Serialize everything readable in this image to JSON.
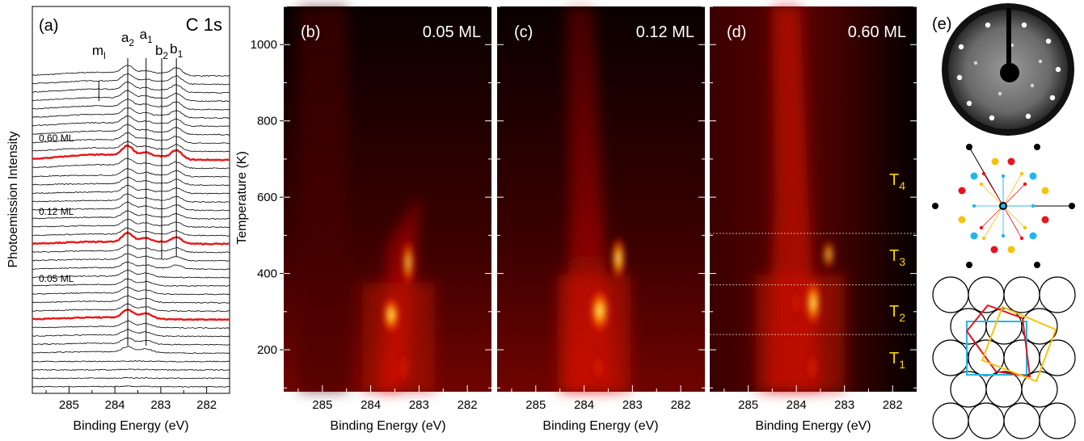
{
  "chart_data": [
    {
      "panel": "(a)",
      "type": "line",
      "title": "C 1s",
      "xlabel": "Binding Energy (eV)",
      "ylabel": "Photoemission Intensity",
      "xlim": [
        285.8,
        281.5
      ],
      "xticks": [
        "285",
        "284",
        "283",
        "282"
      ],
      "peak_labels": [
        {
          "label": "ml",
          "energy": 284.35
        },
        {
          "label": "a2",
          "energy": 283.72
        },
        {
          "label": "a1",
          "energy": 283.32
        },
        {
          "label": "b2",
          "energy": 282.98
        },
        {
          "label": "b1",
          "energy": 282.66
        }
      ],
      "highlighted_spectra": [
        "0.60 ML",
        "0.12 ML",
        "0.05 ML"
      ],
      "spectra_count": 38
    },
    {
      "panel": "(b)",
      "type": "heatmap",
      "label": "0.05 ML",
      "xlabel": "Binding Energy (eV)",
      "ylabel": "Temperature (K)",
      "xlim": [
        285.8,
        281.5
      ],
      "ylim": [
        90,
        1100
      ],
      "xticks": [
        "285",
        "284",
        "283",
        "282"
      ],
      "yticks": [
        "200",
        "400",
        "600",
        "800",
        "1000"
      ]
    },
    {
      "panel": "(c)",
      "type": "heatmap",
      "label": "0.12 ML",
      "xlabel": "Binding Energy (eV)",
      "xlim": [
        285.8,
        281.5
      ],
      "ylim": [
        90,
        1100
      ],
      "xticks": [
        "285",
        "284",
        "283",
        "282"
      ]
    },
    {
      "panel": "(d)",
      "type": "heatmap",
      "label": "0.60 ML",
      "xlabel": "Binding Energy (eV)",
      "xlim": [
        285.8,
        281.5
      ],
      "ylim": [
        90,
        1100
      ],
      "xticks": [
        "285",
        "284",
        "283",
        "282"
      ],
      "temperature_regions": [
        {
          "label": "T1",
          "range_K": [
            90,
            240
          ]
        },
        {
          "label": "T2",
          "range_K": [
            240,
            370
          ]
        },
        {
          "label": "T3",
          "range_K": [
            370,
            505
          ]
        },
        {
          "label": "T4",
          "range_K": [
            505,
            1100
          ]
        }
      ],
      "divider_temperatures_K": [
        240,
        370,
        505
      ]
    },
    {
      "panel": "(e)",
      "type": "other",
      "description_visible": "LEED pattern, reciprocal-space spot diagram and real-space structure model"
    }
  ],
  "colors": {
    "highlight_spectrum": "#e41a1c",
    "region_label": "#f5d300",
    "spot_red": "#e8141c",
    "spot_yellow": "#f7c20f",
    "spot_cyan": "#20b8e8",
    "spot_black": "#000000"
  }
}
